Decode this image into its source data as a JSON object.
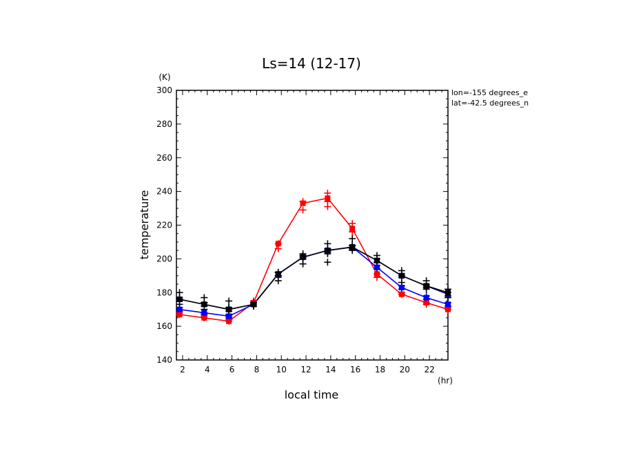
{
  "chart_data": {
    "type": "line",
    "title": "Ls=14 (12-17)",
    "xlabel": "local time",
    "ylabel": "temperature",
    "xunit": "(hr)",
    "yunit": "(K)",
    "annotations": [
      "lon=-155 degrees_e",
      "lat=-42.5 degrees_n"
    ],
    "xlim": [
      1.5,
      23.5
    ],
    "ylim": [
      140,
      300
    ],
    "xticks": [
      2,
      4,
      6,
      8,
      10,
      12,
      14,
      16,
      18,
      20,
      22
    ],
    "yticks": [
      140,
      160,
      180,
      200,
      220,
      240,
      260,
      280,
      300
    ],
    "grid": false,
    "x": [
      1.75,
      3.75,
      5.75,
      7.75,
      9.75,
      11.75,
      13.75,
      15.75,
      17.75,
      19.75,
      21.75,
      23.5
    ],
    "series": [
      {
        "color": "#ff0000",
        "values": [
          167,
          165,
          163,
          174,
          209,
          233,
          236,
          218,
          191,
          179,
          174,
          170
        ],
        "scatter": [
          [
            167,
            168
          ],
          [
            165,
            166
          ],
          [
            163,
            164
          ],
          [
            174,
            175
          ],
          [
            206,
            209
          ],
          [
            229,
            234
          ],
          [
            231,
            234,
            239
          ],
          [
            216,
            221
          ],
          [
            189,
            191
          ],
          [
            179,
            180
          ],
          [
            173,
            174
          ],
          [
            170,
            171
          ]
        ]
      },
      {
        "color": "#0000ff",
        "values": [
          170,
          168,
          166,
          173,
          191,
          201,
          205,
          207,
          195,
          183,
          177,
          173
        ],
        "scatter": [
          [
            169,
            171
          ],
          [
            167,
            168
          ],
          [
            165,
            166
          ],
          [
            172,
            174
          ],
          [
            189,
            192
          ],
          [
            200,
            202
          ],
          [
            204,
            206
          ],
          [
            206,
            208
          ],
          [
            194,
            196
          ],
          [
            182,
            184
          ],
          [
            176,
            178
          ],
          [
            172,
            174
          ]
        ]
      },
      {
        "color": "#000080",
        "values": [
          176,
          173,
          170,
          173,
          191,
          201,
          205,
          207,
          199,
          190,
          184,
          179
        ],
        "scatter": [
          [
            175,
            177
          ],
          [
            172,
            174
          ],
          [
            169,
            171
          ],
          [
            172,
            174
          ],
          [
            190,
            192
          ],
          [
            200,
            202
          ],
          [
            204,
            206
          ],
          [
            206,
            208
          ],
          [
            198,
            200
          ],
          [
            189,
            191
          ],
          [
            183,
            185
          ],
          [
            178,
            180
          ]
        ]
      },
      {
        "color": "#000000",
        "values": [
          176,
          173,
          170,
          173,
          191,
          201,
          205,
          207,
          199,
          190,
          184,
          180
        ],
        "scatter": [
          [
            173,
            176,
            180
          ],
          [
            170,
            174,
            177
          ],
          [
            167,
            171,
            175
          ],
          [
            172,
            173,
            174
          ],
          [
            187,
            190,
            192
          ],
          [
            197,
            201,
            203
          ],
          [
            198,
            203,
            205,
            209
          ],
          [
            205,
            208,
            212
          ],
          [
            194,
            198,
            202
          ],
          [
            186,
            190,
            193
          ],
          [
            182,
            184,
            187
          ],
          [
            177,
            180,
            182
          ]
        ]
      }
    ]
  }
}
